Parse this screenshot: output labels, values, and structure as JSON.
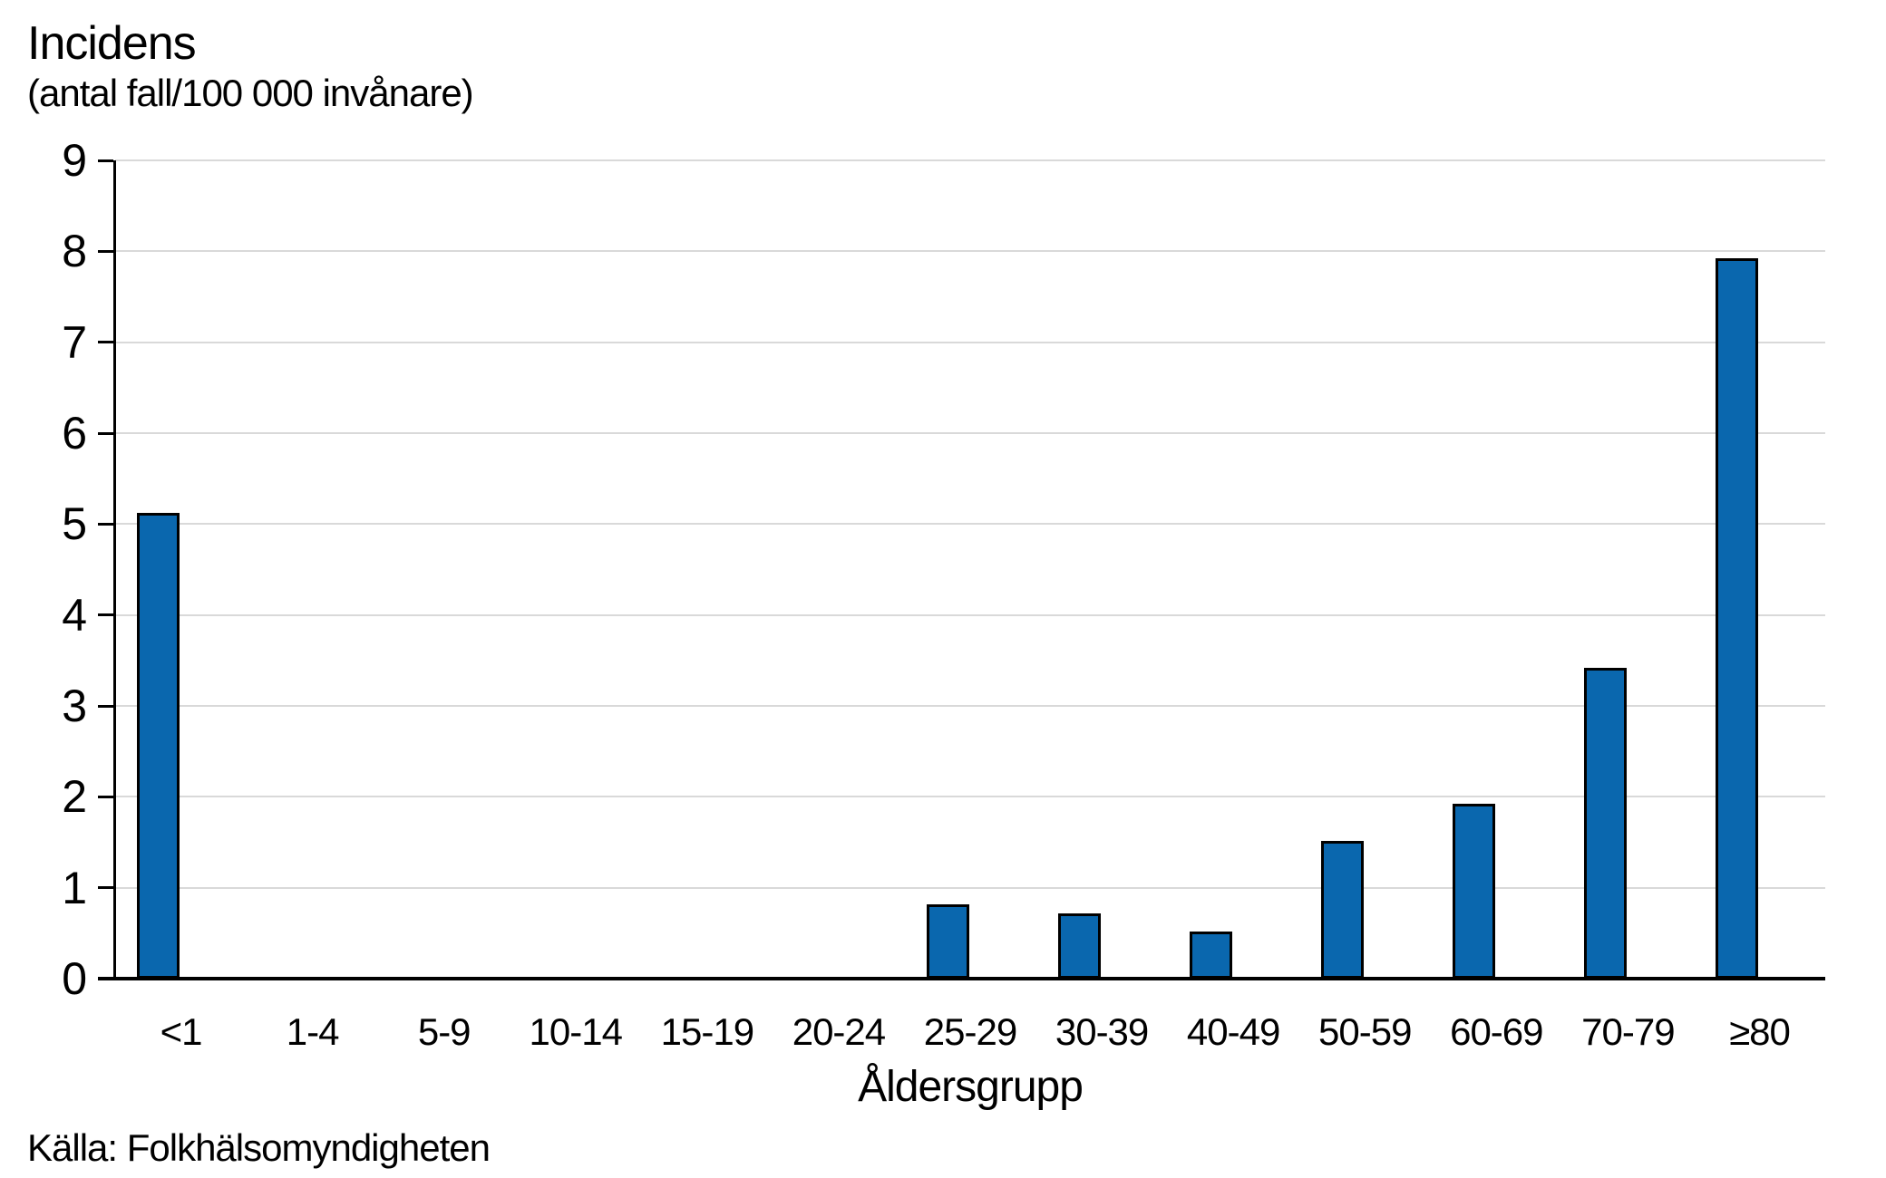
{
  "header": {
    "title": "Incidens",
    "subtitle": "(antal fall/100 000 invånare)"
  },
  "source_label": "Källa: Folkhälsomyndigheten",
  "chart_data": {
    "type": "bar",
    "title": "Incidens",
    "subtitle": "(antal fall/100 000 invånare)",
    "categories": [
      "<1",
      "1-4",
      "5-9",
      "10-14",
      "15-19",
      "20-24",
      "25-29",
      "30-39",
      "40-49",
      "50-59",
      "60-69",
      "70-79",
      "≥80"
    ],
    "values": [
      5.1,
      0,
      0,
      0,
      0,
      0,
      0.8,
      0.7,
      0.5,
      1.5,
      1.9,
      3.4,
      7.9
    ],
    "xlabel": "Åldersgrupp",
    "ylabel": "Incidens (antal fall/100 000 invånare)",
    "ylim": [
      0,
      9
    ],
    "ytick_step": 1,
    "yticks": [
      0,
      1,
      2,
      3,
      4,
      5,
      6,
      7,
      8,
      9
    ],
    "grid": true,
    "legend_position": "none",
    "bar_color": "#0a67ae",
    "bar_border_color": "#000000",
    "gridline_color": "#d9d9d9",
    "axis_color": "#000000",
    "text_color": "#000000"
  }
}
